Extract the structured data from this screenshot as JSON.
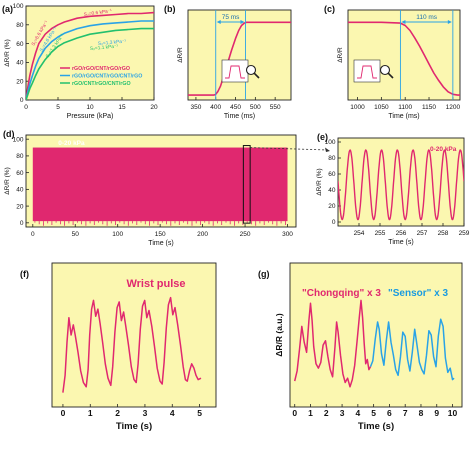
{
  "colors": {
    "panel_bg": "#fbf7b0",
    "magenta": "#e0286f",
    "blue": "#2aa3e6",
    "green": "#22c06e",
    "label_red": "#e0286f",
    "label_blue": "#1a9be0",
    "axis": "#222222"
  },
  "panels": [
    {
      "id": "a",
      "label": "(a)",
      "type": "line",
      "xlabel": "Pressure (kPa)",
      "ylabel": "ΔR/R (%)",
      "xlim": [
        0,
        20
      ],
      "ylim": [
        0,
        100
      ],
      "xticks": [
        "0",
        "5",
        "10",
        "15",
        "20"
      ],
      "yticks": [
        "0",
        "20",
        "40",
        "60",
        "80",
        "100"
      ],
      "legend": [
        "rGO/rGO/CNT/rGO/rGO",
        "rGO/rGO/CNT/rGO/CNT/rGO",
        "rGO/CNT/rGO/CNT/rGO"
      ],
      "annotations": [
        "S₁=6.6 kPa⁻¹",
        "S₂=0.6 kPa⁻¹",
        "S₁=4.6 kPa⁻¹",
        "S₁=1.3 kPa⁻¹",
        "S₂=1.3 kPa⁻¹",
        "S₂=1.1 kPa⁻¹"
      ],
      "series": [
        {
          "name": "rGO/rGO/CNT/rGO/rGO",
          "color": "magenta",
          "x": [
            0,
            0.3,
            0.6,
            1,
            1.5,
            2,
            3,
            4,
            5,
            6,
            8,
            10,
            12,
            14,
            16,
            18,
            20
          ],
          "y": [
            0,
            14,
            26,
            38,
            50,
            60,
            70,
            76,
            80,
            83,
            87,
            89,
            90,
            91,
            92,
            92,
            93
          ]
        },
        {
          "name": "rGO/rGO/CNT/rGO/CNT/rGO",
          "color": "blue",
          "x": [
            0,
            0.3,
            0.6,
            1,
            1.5,
            2,
            3,
            4,
            5,
            6,
            8,
            10,
            12,
            14,
            16,
            18,
            20
          ],
          "y": [
            0,
            9,
            17,
            26,
            36,
            44,
            55,
            62,
            67,
            71,
            76,
            79,
            81,
            82,
            83,
            84,
            84
          ]
        },
        {
          "name": "rGO/CNT/rGO/CNT/rGO",
          "color": "green",
          "x": [
            0,
            0.3,
            0.6,
            1,
            1.5,
            2,
            3,
            4,
            5,
            6,
            8,
            10,
            12,
            14,
            16,
            18,
            20
          ],
          "y": [
            0,
            6,
            12,
            18,
            26,
            33,
            43,
            51,
            57,
            61,
            66,
            70,
            72,
            74,
            75,
            76,
            76
          ]
        }
      ]
    },
    {
      "id": "b",
      "label": "(b)",
      "type": "line",
      "xlabel": "Time (ms)",
      "ylabel": "ΔR/R",
      "xlim": [
        330,
        590
      ],
      "ylim": [
        -5,
        105
      ],
      "xticks": [
        "350",
        "400",
        "450",
        "500",
        "550"
      ],
      "tick_values": [
        350,
        400,
        450,
        500,
        550
      ],
      "annotation": "75 ms",
      "span": [
        400,
        475
      ],
      "series": [
        {
          "color": "magenta",
          "x": [
            330,
            395,
            400,
            405,
            412,
            420,
            430,
            440,
            450,
            458,
            465,
            472,
            478,
            485,
            500,
            520,
            550,
            590
          ],
          "y": [
            1,
            1,
            2,
            5,
            12,
            24,
            40,
            56,
            70,
            80,
            86,
            89,
            90,
            90,
            90,
            90,
            90,
            90
          ]
        }
      ]
    },
    {
      "id": "c",
      "label": "(c)",
      "type": "line",
      "xlabel": "Time (ms)",
      "ylabel": "ΔR/R",
      "xlim": [
        980,
        1215
      ],
      "ylim": [
        -5,
        105
      ],
      "xticks": [
        "1000",
        "1050",
        "1100",
        "1150",
        "1200"
      ],
      "tick_values": [
        1000,
        1050,
        1100,
        1150,
        1200
      ],
      "annotation": "110 ms",
      "span": [
        1090,
        1200
      ],
      "series": [
        {
          "color": "magenta",
          "x": [
            980,
            1050,
            1090,
            1100,
            1110,
            1120,
            1130,
            1140,
            1150,
            1160,
            1170,
            1180,
            1190,
            1200,
            1210,
            1215
          ],
          "y": [
            90,
            90,
            89,
            86,
            80,
            71,
            61,
            50,
            39,
            28,
            19,
            11,
            5,
            2,
            1,
            1
          ]
        }
      ]
    },
    {
      "id": "d",
      "label": "(d)",
      "type": "line",
      "xlabel": "Time (s)",
      "ylabel": "ΔR/R (%)",
      "xlim": [
        -8,
        310
      ],
      "ylim": [
        -5,
        105
      ],
      "xticks": [
        "0",
        "50",
        "100",
        "150",
        "200",
        "250",
        "300"
      ],
      "tick_values": [
        0,
        50,
        100,
        150,
        200,
        250,
        300
      ],
      "yticks": [
        "0",
        "20",
        "40",
        "60",
        "80",
        "100"
      ],
      "ytick_values": [
        0,
        20,
        40,
        60,
        80,
        100
      ],
      "annotation": "0-20 kPa",
      "band": {
        "x_start": 0,
        "x_end": 300,
        "low": 2,
        "high": 90,
        "color": "magenta"
      },
      "highlight": [
        248,
        256
      ]
    },
    {
      "id": "e",
      "label": "(e)",
      "type": "line",
      "xlabel": "Time (s)",
      "ylabel": "ΔR/R (%)",
      "xlim": [
        253,
        259
      ],
      "ylim": [
        -5,
        105
      ],
      "xticks": [
        "254",
        "255",
        "256",
        "257",
        "258",
        "259"
      ],
      "tick_values": [
        254,
        255,
        256,
        257,
        258,
        259
      ],
      "yticks": [
        "0",
        "20",
        "40",
        "60",
        "80",
        "100"
      ],
      "ytick_values": [
        0,
        20,
        40,
        60,
        80,
        100
      ],
      "annotation": "0-20 kPa",
      "series": [
        {
          "color": "magenta",
          "function": "cosine",
          "period": 0.75,
          "phase": 253.2,
          "low": 3,
          "high": 90
        }
      ]
    },
    {
      "id": "f",
      "label": "(f)",
      "type": "line",
      "xlabel": "Time (s)",
      "ylabel": "",
      "title": "Wrist pulse",
      "xlim": [
        -0.4,
        5.6
      ],
      "ylim": [
        0,
        10
      ],
      "xticks": [
        "0",
        "1",
        "2",
        "3",
        "4",
        "5"
      ],
      "tick_values": [
        0,
        1,
        2,
        3,
        4,
        5
      ],
      "series": [
        {
          "color": "magenta",
          "x": [
            0,
            0.08,
            0.15,
            0.22,
            0.3,
            0.38,
            0.45,
            0.55,
            0.65,
            0.75,
            0.85,
            0.92,
            0.98,
            1.05,
            1.12,
            1.2,
            1.28,
            1.36,
            1.45,
            1.55,
            1.65,
            1.75,
            1.82,
            1.9,
            1.98,
            2.06,
            2.14,
            2.22,
            2.3,
            2.4,
            2.5,
            2.6,
            2.68,
            2.75,
            2.83,
            2.91,
            2.99,
            3.07,
            3.15,
            3.25,
            3.35,
            3.45,
            3.55,
            3.63,
            3.7,
            3.78,
            3.86,
            3.94,
            4.02,
            4.1,
            4.2,
            4.3,
            4.4,
            4.48,
            4.55,
            4.63,
            4.71,
            4.79,
            4.87,
            4.95,
            5.05
          ],
          "y": [
            1.0,
            2.2,
            4.5,
            6.2,
            5.0,
            5.7,
            5.0,
            3.8,
            2.5,
            1.7,
            1.4,
            2.6,
            5.0,
            6.8,
            7.4,
            6.3,
            6.8,
            5.8,
            4.5,
            3.0,
            2.0,
            1.5,
            2.8,
            5.2,
            6.9,
            7.3,
            6.0,
            6.6,
            5.6,
            4.3,
            2.8,
            1.9,
            1.7,
            3.0,
            5.4,
            7.0,
            7.4,
            6.2,
            6.7,
            5.6,
            4.2,
            2.7,
            1.8,
            1.6,
            3.1,
            5.5,
            7.1,
            7.6,
            6.4,
            6.9,
            5.7,
            4.3,
            2.8,
            1.9,
            1.8,
            2.5,
            3.0,
            2.7,
            2.2,
            1.9,
            2.0
          ]
        }
      ]
    },
    {
      "id": "g",
      "label": "(g)",
      "type": "line",
      "xlabel": "Time (s)",
      "ylabel": "ΔR/R (a.u.)",
      "xlim": [
        -0.3,
        10.6
      ],
      "ylim": [
        0,
        10
      ],
      "xticks": [
        "0",
        "1",
        "2",
        "3",
        "4",
        "5",
        "6",
        "7",
        "8",
        "9",
        "10"
      ],
      "tick_values": [
        0,
        1,
        2,
        3,
        4,
        5,
        6,
        7,
        8,
        9,
        10
      ],
      "annotations": [
        "\"Chongqing\" x 3",
        "\"Sensor\" x 3"
      ],
      "series": [
        {
          "name": "\"Chongqing\" x 3",
          "color": "magenta",
          "x": [
            0,
            0.15,
            0.3,
            0.45,
            0.6,
            0.75,
            0.9,
            1.0,
            1.1,
            1.2,
            1.35,
            1.5,
            1.65,
            1.8,
            1.95,
            2.1,
            2.25,
            2.4,
            2.55,
            2.65,
            2.75,
            2.9,
            3.05,
            3.2,
            3.35,
            3.5,
            3.65,
            3.8,
            3.95,
            4.1,
            4.2,
            4.3,
            4.4,
            4.5,
            4.6,
            4.7,
            4.8
          ],
          "y": [
            1.8,
            2.5,
            4.0,
            5.6,
            4.5,
            3.8,
            6.0,
            7.2,
            6.0,
            4.2,
            3.0,
            2.7,
            3.1,
            4.3,
            4.6,
            3.5,
            2.6,
            2.1,
            4.2,
            5.9,
            5.2,
            3.6,
            2.3,
            1.7,
            2.0,
            1.4,
            1.9,
            2.9,
            4.6,
            6.3,
            7.4,
            6.2,
            4.4,
            3.0,
            3.3,
            2.6,
            2.8
          ]
        },
        {
          "name": "\"Sensor\" x 3",
          "color": "blue",
          "x": [
            4.8,
            4.95,
            5.1,
            5.25,
            5.35,
            5.5,
            5.65,
            5.8,
            5.95,
            6.1,
            6.25,
            6.4,
            6.55,
            6.7,
            6.85,
            7.0,
            7.15,
            7.3,
            7.45,
            7.6,
            7.75,
            7.9,
            8.05,
            8.2,
            8.35,
            8.5,
            8.65,
            8.8,
            8.95,
            9.1,
            9.25,
            9.4,
            9.55,
            9.7,
            9.85,
            10.0,
            10.1
          ],
          "y": [
            2.8,
            3.2,
            4.7,
            5.9,
            5.4,
            3.7,
            2.9,
            4.6,
            5.9,
            4.5,
            3.6,
            2.6,
            2.2,
            3.5,
            5.2,
            4.9,
            3.3,
            2.5,
            3.8,
            5.4,
            4.3,
            3.1,
            2.6,
            2.3,
            3.6,
            5.3,
            5.0,
            3.5,
            2.8,
            4.9,
            6.1,
            5.6,
            3.4,
            2.4,
            2.7,
            1.9,
            2.0
          ]
        }
      ]
    }
  ]
}
